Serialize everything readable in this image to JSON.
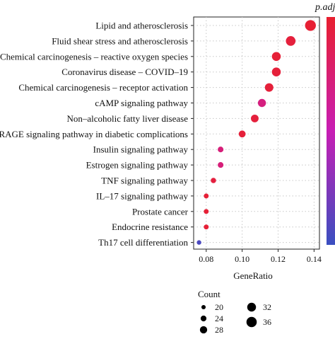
{
  "chart_data": {
    "type": "scatter",
    "xlabel": "GeneRatio",
    "xlim": [
      0.073,
      0.143
    ],
    "xticks": [
      0.08,
      0.1,
      0.12,
      0.14
    ],
    "xtick_labels": [
      "0.08",
      "0.10",
      "0.12",
      "0.14"
    ],
    "categories": [
      "Lipid and atherosclerosis",
      "Fluid shear stress and atherosclerosis",
      "Chemical carcinogenesis – reactive oxygen species",
      "Coronavirus disease – COVID–19",
      "Chemical carcinogenesis – receptor activation",
      "cAMP signaling pathway",
      "Non–alcoholic fatty liver disease",
      "AGE–RAGE signaling pathway in diabetic complications",
      "Insulin signaling pathway",
      "Estrogen signaling pathway",
      "TNF signaling pathway",
      "IL–17 signaling pathway",
      "Prostate cancer",
      "Endocrine resistance",
      "Th17 cell differentiation"
    ],
    "gene_ratio": [
      0.138,
      0.127,
      0.119,
      0.119,
      0.115,
      0.111,
      0.107,
      0.1,
      0.088,
      0.088,
      0.084,
      0.08,
      0.08,
      0.08,
      0.076
    ],
    "count": [
      36,
      33,
      31,
      31,
      30,
      29,
      28,
      26,
      23,
      23,
      22,
      21,
      21,
      21,
      20
    ],
    "color_level": [
      0.98,
      0.95,
      0.97,
      0.96,
      0.96,
      0.7,
      0.95,
      0.96,
      0.72,
      0.72,
      0.94,
      0.97,
      0.97,
      0.97,
      0.06
    ],
    "color_legend_title": "p.adj",
    "size_legend_title": "Count",
    "size_legend_values": [
      20,
      24,
      28,
      32,
      36
    ],
    "size_legend_labels": [
      "20",
      "24",
      "28",
      "32",
      "36"
    ],
    "color_low": "#3a4fc0",
    "color_high": "#e8202f",
    "grid": true,
    "grid_color": "#c8c8c8",
    "panel_border_color": "#222222"
  }
}
